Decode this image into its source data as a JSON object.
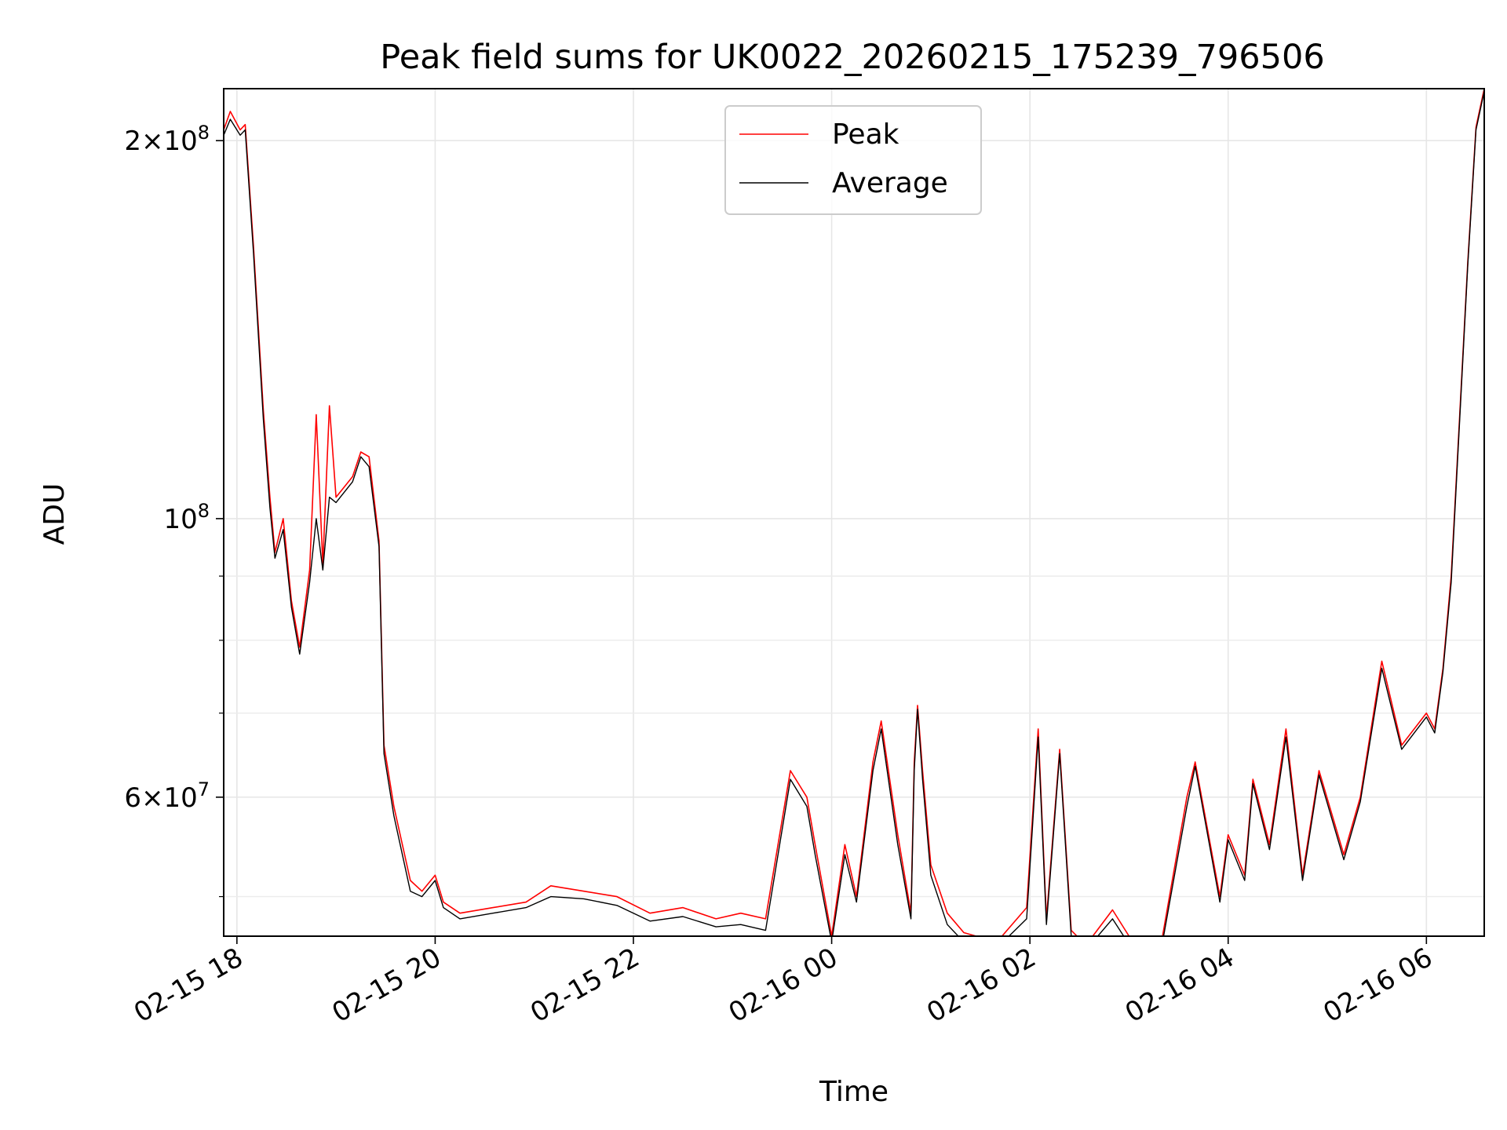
{
  "chart_data": {
    "type": "line",
    "title": "Peak field sums for UK0022_20260215_175239_796506",
    "xlabel": "Time",
    "ylabel": "ADU",
    "y_scale": "log",
    "ylim": [
      46500000,
      220000000
    ],
    "xlim": [
      "2026-02-15 17:52",
      "2026-02-16 06:35"
    ],
    "grid": true,
    "legend_position": "top-center",
    "x_tick_labels": [
      "02-15 18",
      "02-15 20",
      "02-15 22",
      "02-16 00",
      "02-16 02",
      "02-16 04",
      "02-16 06"
    ],
    "x_ticks": [
      "2026-02-15 18:00",
      "2026-02-15 20:00",
      "2026-02-15 22:00",
      "2026-02-16 00:00",
      "2026-02-16 02:00",
      "2026-02-16 04:00",
      "2026-02-16 06:00"
    ],
    "y_major_ticks": [
      {
        "value": 60000000,
        "mant": "6",
        "exp": "7"
      },
      {
        "value": 100000000,
        "mant": "",
        "exp": "8"
      },
      {
        "value": 200000000,
        "mant": "2",
        "exp": "8"
      }
    ],
    "y_minor_ticks": [
      50000000,
      70000000,
      80000000,
      90000000
    ],
    "series": [
      {
        "name": "Peak",
        "color": "#ff0000",
        "points": [
          [
            "2026-02-15 17:52",
            204000000
          ],
          [
            "2026-02-15 17:56",
            211000000
          ],
          [
            "2026-02-15 18:02",
            204000000
          ],
          [
            "2026-02-15 18:05",
            206000000
          ],
          [
            "2026-02-15 18:10",
            165000000
          ],
          [
            "2026-02-15 18:16",
            122000000
          ],
          [
            "2026-02-15 18:20",
            104000000
          ],
          [
            "2026-02-15 18:23",
            94000000
          ],
          [
            "2026-02-15 18:28",
            100000000
          ],
          [
            "2026-02-15 18:33",
            86000000
          ],
          [
            "2026-02-15 18:38",
            79000000
          ],
          [
            "2026-02-15 18:44",
            91000000
          ],
          [
            "2026-02-15 18:48",
            121000000
          ],
          [
            "2026-02-15 18:52",
            92000000
          ],
          [
            "2026-02-15 18:56",
            123000000
          ],
          [
            "2026-02-15 19:00",
            104000000
          ],
          [
            "2026-02-15 19:10",
            108000000
          ],
          [
            "2026-02-15 19:15",
            113000000
          ],
          [
            "2026-02-15 19:20",
            112000000
          ],
          [
            "2026-02-15 19:26",
            96000000
          ],
          [
            "2026-02-15 19:29",
            66000000
          ],
          [
            "2026-02-15 19:35",
            59000000
          ],
          [
            "2026-02-15 19:45",
            51500000
          ],
          [
            "2026-02-15 19:52",
            50500000
          ],
          [
            "2026-02-15 20:00",
            52000000
          ],
          [
            "2026-02-15 20:05",
            49500000
          ],
          [
            "2026-02-15 20:15",
            48500000
          ],
          [
            "2026-02-15 20:35",
            49000000
          ],
          [
            "2026-02-15 20:55",
            49500000
          ],
          [
            "2026-02-15 21:10",
            51000000
          ],
          [
            "2026-02-15 21:30",
            50500000
          ],
          [
            "2026-02-15 21:50",
            50000000
          ],
          [
            "2026-02-15 22:10",
            48500000
          ],
          [
            "2026-02-15 22:30",
            49000000
          ],
          [
            "2026-02-15 22:50",
            48000000
          ],
          [
            "2026-02-15 23:05",
            48500000
          ],
          [
            "2026-02-15 23:20",
            48000000
          ],
          [
            "2026-02-15 23:35",
            63000000
          ],
          [
            "2026-02-15 23:45",
            60000000
          ],
          [
            "2026-02-15 23:50",
            55000000
          ],
          [
            "2026-02-16 00:00",
            46500000
          ],
          [
            "2026-02-16 00:08",
            55000000
          ],
          [
            "2026-02-16 00:15",
            50000000
          ],
          [
            "2026-02-16 00:25",
            64000000
          ],
          [
            "2026-02-16 00:30",
            69000000
          ],
          [
            "2026-02-16 00:40",
            56000000
          ],
          [
            "2026-02-16 00:48",
            48500000
          ],
          [
            "2026-02-16 00:50",
            64000000
          ],
          [
            "2026-02-16 00:52",
            71000000
          ],
          [
            "2026-02-16 00:55",
            63000000
          ],
          [
            "2026-02-16 01:00",
            53000000
          ],
          [
            "2026-02-16 01:10",
            48500000
          ],
          [
            "2026-02-16 01:20",
            46800000
          ],
          [
            "2026-02-16 01:40",
            46000000
          ],
          [
            "2026-02-16 01:58",
            49000000
          ],
          [
            "2026-02-16 02:05",
            68000000
          ],
          [
            "2026-02-16 02:10",
            48000000
          ],
          [
            "2026-02-16 02:18",
            65500000
          ],
          [
            "2026-02-16 02:25",
            47000000
          ],
          [
            "2026-02-16 02:32",
            46000000
          ],
          [
            "2026-02-16 02:38",
            46500000
          ],
          [
            "2026-02-16 02:50",
            48800000
          ],
          [
            "2026-02-16 03:00",
            46500000
          ],
          [
            "2026-02-16 03:20",
            46300000
          ],
          [
            "2026-02-16 03:35",
            60000000
          ],
          [
            "2026-02-16 03:40",
            64000000
          ],
          [
            "2026-02-16 03:55",
            50000000
          ],
          [
            "2026-02-16 04:00",
            56000000
          ],
          [
            "2026-02-16 04:10",
            52000000
          ],
          [
            "2026-02-16 04:15",
            62000000
          ],
          [
            "2026-02-16 04:25",
            55000000
          ],
          [
            "2026-02-16 04:35",
            68000000
          ],
          [
            "2026-02-16 04:45",
            52000000
          ],
          [
            "2026-02-16 04:55",
            63000000
          ],
          [
            "2026-02-16 05:10",
            54000000
          ],
          [
            "2026-02-16 05:20",
            60000000
          ],
          [
            "2026-02-16 05:33",
            77000000
          ],
          [
            "2026-02-16 05:45",
            66000000
          ],
          [
            "2026-02-16 06:00",
            70000000
          ],
          [
            "2026-02-16 06:05",
            68000000
          ],
          [
            "2026-02-16 06:10",
            76000000
          ],
          [
            "2026-02-16 06:15",
            90000000
          ],
          [
            "2026-02-16 06:25",
            160000000
          ],
          [
            "2026-02-16 06:30",
            205000000
          ],
          [
            "2026-02-16 06:35",
            220000000
          ]
        ]
      },
      {
        "name": "Average",
        "color": "#000000",
        "points": [
          [
            "2026-02-15 17:52",
            202000000
          ],
          [
            "2026-02-15 17:56",
            208000000
          ],
          [
            "2026-02-15 18:02",
            202000000
          ],
          [
            "2026-02-15 18:05",
            204000000
          ],
          [
            "2026-02-15 18:10",
            163000000
          ],
          [
            "2026-02-15 18:16",
            120000000
          ],
          [
            "2026-02-15 18:20",
            102000000
          ],
          [
            "2026-02-15 18:23",
            93000000
          ],
          [
            "2026-02-15 18:28",
            98000000
          ],
          [
            "2026-02-15 18:33",
            85000000
          ],
          [
            "2026-02-15 18:38",
            78000000
          ],
          [
            "2026-02-15 18:44",
            89000000
          ],
          [
            "2026-02-15 18:48",
            100000000
          ],
          [
            "2026-02-15 18:52",
            91000000
          ],
          [
            "2026-02-15 18:56",
            104000000
          ],
          [
            "2026-02-15 19:00",
            103000000
          ],
          [
            "2026-02-15 19:10",
            107000000
          ],
          [
            "2026-02-15 19:15",
            112000000
          ],
          [
            "2026-02-15 19:20",
            110000000
          ],
          [
            "2026-02-15 19:26",
            95000000
          ],
          [
            "2026-02-15 19:29",
            65000000
          ],
          [
            "2026-02-15 19:35",
            58000000
          ],
          [
            "2026-02-15 19:45",
            50500000
          ],
          [
            "2026-02-15 19:52",
            50000000
          ],
          [
            "2026-02-15 20:00",
            51500000
          ],
          [
            "2026-02-15 20:05",
            49000000
          ],
          [
            "2026-02-15 20:15",
            48000000
          ],
          [
            "2026-02-15 20:35",
            48500000
          ],
          [
            "2026-02-15 20:55",
            49000000
          ],
          [
            "2026-02-15 21:10",
            50000000
          ],
          [
            "2026-02-15 21:30",
            49800000
          ],
          [
            "2026-02-15 21:50",
            49200000
          ],
          [
            "2026-02-15 22:10",
            47800000
          ],
          [
            "2026-02-15 22:30",
            48200000
          ],
          [
            "2026-02-15 22:50",
            47300000
          ],
          [
            "2026-02-15 23:05",
            47500000
          ],
          [
            "2026-02-15 23:20",
            47000000
          ],
          [
            "2026-02-15 23:35",
            62000000
          ],
          [
            "2026-02-15 23:45",
            59000000
          ],
          [
            "2026-02-15 23:50",
            54000000
          ],
          [
            "2026-02-16 00:00",
            46000000
          ],
          [
            "2026-02-16 00:08",
            54000000
          ],
          [
            "2026-02-16 00:15",
            49500000
          ],
          [
            "2026-02-16 00:25",
            63000000
          ],
          [
            "2026-02-16 00:30",
            68000000
          ],
          [
            "2026-02-16 00:40",
            55000000
          ],
          [
            "2026-02-16 00:48",
            48000000
          ],
          [
            "2026-02-16 00:50",
            63000000
          ],
          [
            "2026-02-16 00:52",
            70500000
          ],
          [
            "2026-02-16 00:55",
            62000000
          ],
          [
            "2026-02-16 01:00",
            52000000
          ],
          [
            "2026-02-16 01:10",
            47500000
          ],
          [
            "2026-02-16 01:20",
            46000000
          ],
          [
            "2026-02-16 01:40",
            45500000
          ],
          [
            "2026-02-16 01:58",
            48000000
          ],
          [
            "2026-02-16 02:05",
            67000000
          ],
          [
            "2026-02-16 02:10",
            47500000
          ],
          [
            "2026-02-16 02:18",
            65000000
          ],
          [
            "2026-02-16 02:25",
            46500000
          ],
          [
            "2026-02-16 02:32",
            45500000
          ],
          [
            "2026-02-16 02:38",
            46000000
          ],
          [
            "2026-02-16 02:50",
            48000000
          ],
          [
            "2026-02-16 03:00",
            45800000
          ],
          [
            "2026-02-16 03:20",
            45800000
          ],
          [
            "2026-02-16 03:35",
            59000000
          ],
          [
            "2026-02-16 03:40",
            63500000
          ],
          [
            "2026-02-16 03:55",
            49500000
          ],
          [
            "2026-02-16 04:00",
            55500000
          ],
          [
            "2026-02-16 04:10",
            51500000
          ],
          [
            "2026-02-16 04:15",
            61500000
          ],
          [
            "2026-02-16 04:25",
            54500000
          ],
          [
            "2026-02-16 04:35",
            67000000
          ],
          [
            "2026-02-16 04:45",
            51500000
          ],
          [
            "2026-02-16 04:55",
            62500000
          ],
          [
            "2026-02-16 05:10",
            53500000
          ],
          [
            "2026-02-16 05:20",
            59500000
          ],
          [
            "2026-02-16 05:33",
            76000000
          ],
          [
            "2026-02-16 05:45",
            65500000
          ],
          [
            "2026-02-16 06:00",
            69500000
          ],
          [
            "2026-02-16 06:05",
            67500000
          ],
          [
            "2026-02-16 06:10",
            75500000
          ],
          [
            "2026-02-16 06:15",
            89000000
          ],
          [
            "2026-02-16 06:25",
            159000000
          ],
          [
            "2026-02-16 06:30",
            204000000
          ],
          [
            "2026-02-16 06:35",
            219000000
          ]
        ]
      }
    ]
  }
}
